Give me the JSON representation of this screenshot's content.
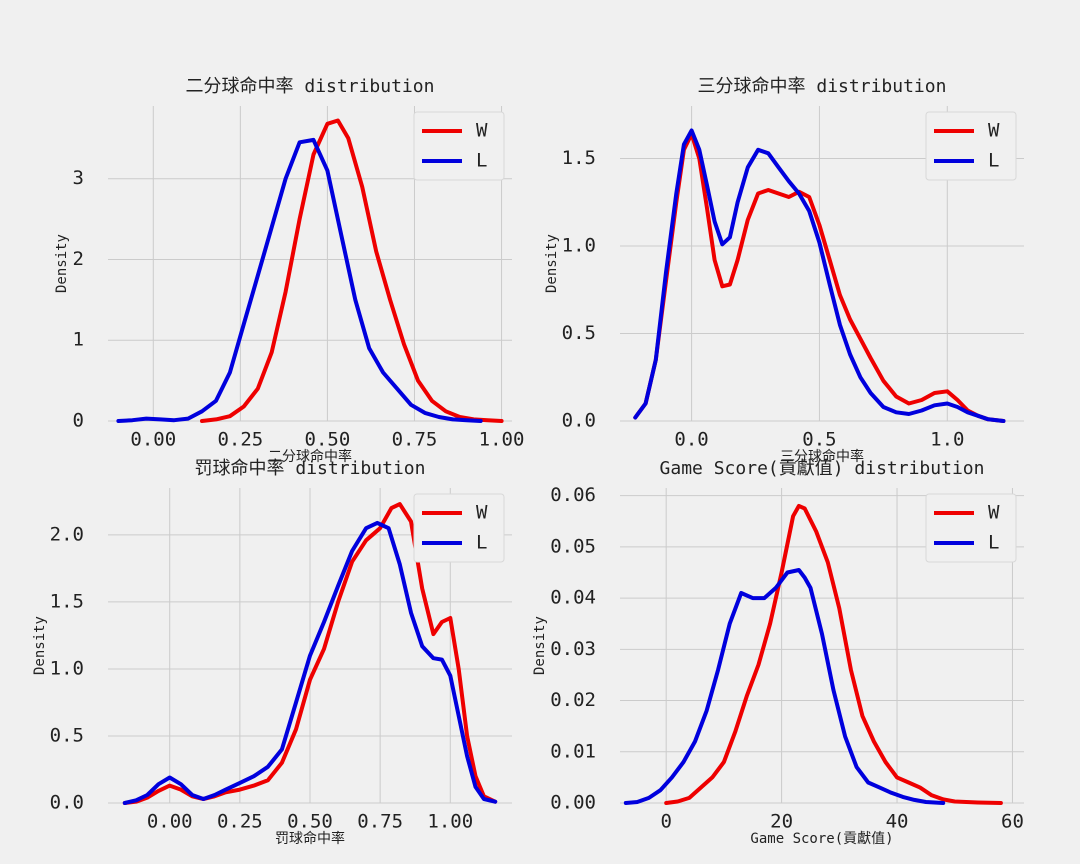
{
  "chart_data": [
    {
      "type": "line",
      "title": "二分球命中率 distribution",
      "xlabel": "二分球命中率",
      "ylabel": "Density",
      "xlim": [
        -0.13,
        1.03
      ],
      "ylim": [
        0,
        3.9
      ],
      "xticks": [
        0.0,
        0.25,
        0.5,
        0.75,
        1.0
      ],
      "xtick_labels": [
        "0.00",
        "0.25",
        "0.50",
        "0.75",
        "1.00"
      ],
      "yticks": [
        0,
        1,
        2,
        3
      ],
      "ytick_labels": [
        "0",
        "1",
        "2",
        "3"
      ],
      "grid": true,
      "legend": "top-right",
      "series": [
        {
          "name": "W",
          "color": "#ee0000",
          "x": [
            0.14,
            0.18,
            0.22,
            0.26,
            0.3,
            0.34,
            0.38,
            0.42,
            0.46,
            0.5,
            0.53,
            0.56,
            0.6,
            0.64,
            0.68,
            0.72,
            0.76,
            0.8,
            0.84,
            0.88,
            0.92,
            0.96,
            1.0
          ],
          "y": [
            0,
            0.02,
            0.06,
            0.18,
            0.4,
            0.85,
            1.6,
            2.5,
            3.3,
            3.68,
            3.72,
            3.5,
            2.9,
            2.1,
            1.5,
            0.95,
            0.5,
            0.25,
            0.12,
            0.05,
            0.02,
            0.01,
            0
          ]
        },
        {
          "name": "L",
          "color": "#0000dd",
          "x": [
            -0.1,
            -0.06,
            -0.02,
            0.02,
            0.06,
            0.1,
            0.14,
            0.18,
            0.22,
            0.26,
            0.3,
            0.34,
            0.38,
            0.42,
            0.46,
            0.5,
            0.54,
            0.58,
            0.62,
            0.66,
            0.7,
            0.74,
            0.78,
            0.82,
            0.86,
            0.9,
            0.94
          ],
          "y": [
            0,
            0.01,
            0.03,
            0.02,
            0.01,
            0.03,
            0.12,
            0.25,
            0.6,
            1.2,
            1.8,
            2.4,
            3.0,
            3.45,
            3.48,
            3.1,
            2.3,
            1.5,
            0.9,
            0.6,
            0.4,
            0.2,
            0.1,
            0.05,
            0.02,
            0.01,
            0
          ]
        }
      ]
    },
    {
      "type": "line",
      "title": "三分球命中率 distribution",
      "xlabel": "三分球命中率",
      "ylabel": "Density",
      "xlim": [
        -0.28,
        1.3
      ],
      "ylim": [
        0,
        1.8
      ],
      "xticks": [
        0.0,
        0.5,
        1.0
      ],
      "xtick_labels": [
        "0.0",
        "0.5",
        "1.0"
      ],
      "yticks": [
        0.0,
        0.5,
        1.0,
        1.5
      ],
      "ytick_labels": [
        "0.0",
        "0.5",
        "1.0",
        "1.5"
      ],
      "grid": true,
      "legend": "top-right",
      "series": [
        {
          "name": "W",
          "color": "#ee0000",
          "x": [
            -0.22,
            -0.18,
            -0.14,
            -0.1,
            -0.06,
            -0.03,
            0.0,
            0.03,
            0.06,
            0.09,
            0.12,
            0.15,
            0.18,
            0.22,
            0.26,
            0.3,
            0.34,
            0.38,
            0.42,
            0.46,
            0.5,
            0.54,
            0.58,
            0.62,
            0.66,
            0.7,
            0.75,
            0.8,
            0.85,
            0.9,
            0.95,
            1.0,
            1.04,
            1.08,
            1.12,
            1.16,
            1.22
          ],
          "y": [
            0.02,
            0.1,
            0.35,
            0.8,
            1.25,
            1.55,
            1.64,
            1.5,
            1.22,
            0.92,
            0.77,
            0.78,
            0.92,
            1.15,
            1.3,
            1.32,
            1.3,
            1.28,
            1.31,
            1.28,
            1.12,
            0.92,
            0.72,
            0.58,
            0.47,
            0.36,
            0.23,
            0.14,
            0.1,
            0.12,
            0.16,
            0.17,
            0.12,
            0.06,
            0.03,
            0.01,
            0.0
          ]
        },
        {
          "name": "L",
          "color": "#0000dd",
          "x": [
            -0.22,
            -0.18,
            -0.14,
            -0.1,
            -0.06,
            -0.03,
            0.0,
            0.03,
            0.06,
            0.09,
            0.12,
            0.15,
            0.18,
            0.22,
            0.26,
            0.3,
            0.34,
            0.38,
            0.42,
            0.46,
            0.5,
            0.54,
            0.58,
            0.62,
            0.66,
            0.7,
            0.75,
            0.8,
            0.85,
            0.9,
            0.95,
            1.0,
            1.04,
            1.08,
            1.12,
            1.16,
            1.22
          ],
          "y": [
            0.02,
            0.1,
            0.35,
            0.85,
            1.3,
            1.58,
            1.66,
            1.55,
            1.35,
            1.14,
            1.01,
            1.05,
            1.25,
            1.45,
            1.55,
            1.53,
            1.45,
            1.37,
            1.3,
            1.2,
            1.02,
            0.78,
            0.55,
            0.38,
            0.25,
            0.16,
            0.08,
            0.05,
            0.04,
            0.06,
            0.09,
            0.1,
            0.08,
            0.05,
            0.03,
            0.01,
            0.0
          ]
        }
      ]
    },
    {
      "type": "line",
      "title": "罚球命中率 distribution",
      "xlabel": "罚球命中率",
      "ylabel": "Density",
      "xlim": [
        -0.22,
        1.22
      ],
      "ylim": [
        0,
        2.35
      ],
      "xticks": [
        0.0,
        0.25,
        0.5,
        0.75,
        1.0
      ],
      "xtick_labels": [
        "0.00",
        "0.25",
        "0.50",
        "0.75",
        "1.00"
      ],
      "yticks": [
        0.0,
        0.5,
        1.0,
        1.5,
        2.0
      ],
      "ytick_labels": [
        "0.0",
        "0.5",
        "1.0",
        "1.5",
        "2.0"
      ],
      "grid": true,
      "legend": "top-right",
      "series": [
        {
          "name": "W",
          "color": "#ee0000",
          "x": [
            -0.16,
            -0.12,
            -0.08,
            -0.04,
            0.0,
            0.04,
            0.08,
            0.12,
            0.16,
            0.2,
            0.25,
            0.3,
            0.35,
            0.4,
            0.45,
            0.5,
            0.55,
            0.6,
            0.65,
            0.7,
            0.75,
            0.79,
            0.82,
            0.86,
            0.9,
            0.94,
            0.97,
            1.0,
            1.03,
            1.06,
            1.09,
            1.12,
            1.16
          ],
          "y": [
            0,
            0.01,
            0.04,
            0.09,
            0.13,
            0.1,
            0.05,
            0.03,
            0.05,
            0.08,
            0.1,
            0.13,
            0.17,
            0.3,
            0.55,
            0.92,
            1.15,
            1.5,
            1.8,
            1.96,
            2.05,
            2.2,
            2.23,
            2.1,
            1.6,
            1.26,
            1.35,
            1.38,
            1.0,
            0.5,
            0.2,
            0.05,
            0.01
          ]
        },
        {
          "name": "L",
          "color": "#0000dd",
          "x": [
            -0.16,
            -0.12,
            -0.08,
            -0.04,
            0.0,
            0.04,
            0.08,
            0.12,
            0.16,
            0.2,
            0.25,
            0.3,
            0.35,
            0.4,
            0.45,
            0.5,
            0.55,
            0.6,
            0.65,
            0.7,
            0.74,
            0.78,
            0.82,
            0.86,
            0.9,
            0.94,
            0.97,
            1.0,
            1.03,
            1.06,
            1.09,
            1.12,
            1.16
          ],
          "y": [
            0,
            0.02,
            0.06,
            0.14,
            0.19,
            0.14,
            0.06,
            0.03,
            0.06,
            0.1,
            0.15,
            0.2,
            0.27,
            0.4,
            0.75,
            1.1,
            1.35,
            1.62,
            1.88,
            2.05,
            2.09,
            2.05,
            1.78,
            1.42,
            1.17,
            1.08,
            1.07,
            0.95,
            0.65,
            0.35,
            0.12,
            0.03,
            0.01
          ]
        }
      ]
    },
    {
      "type": "line",
      "title": "Game Score(貢獻值) distribution",
      "xlabel": "Game Score(貢獻值)",
      "ylabel": "Density",
      "xlim": [
        -8,
        62
      ],
      "ylim": [
        0,
        0.0615
      ],
      "xticks": [
        0,
        20,
        40,
        60
      ],
      "xtick_labels": [
        "0",
        "20",
        "40",
        "60"
      ],
      "yticks": [
        0.0,
        0.01,
        0.02,
        0.03,
        0.04,
        0.05,
        0.06
      ],
      "ytick_labels": [
        "0.00",
        "0.01",
        "0.02",
        "0.03",
        "0.04",
        "0.05",
        "0.06"
      ],
      "grid": true,
      "legend": "top-right",
      "series": [
        {
          "name": "W",
          "color": "#ee0000",
          "x": [
            0,
            2,
            4,
            6,
            8,
            10,
            12,
            14,
            16,
            18,
            20,
            22,
            23,
            24,
            26,
            28,
            30,
            32,
            34,
            36,
            38,
            40,
            42,
            44,
            46,
            48,
            50,
            54,
            58
          ],
          "y": [
            0,
            0.0003,
            0.001,
            0.003,
            0.005,
            0.008,
            0.014,
            0.021,
            0.027,
            0.035,
            0.045,
            0.056,
            0.058,
            0.0575,
            0.053,
            0.047,
            0.038,
            0.026,
            0.017,
            0.012,
            0.008,
            0.005,
            0.004,
            0.003,
            0.0015,
            0.0007,
            0.0003,
            0.0001,
            0
          ]
        },
        {
          "name": "L",
          "color": "#0000dd",
          "x": [
            -7,
            -5,
            -3,
            -1,
            1,
            3,
            5,
            7,
            9,
            11,
            13,
            15,
            17,
            19,
            21,
            23,
            24,
            25,
            27,
            29,
            31,
            33,
            35,
            37,
            39,
            41,
            43,
            45,
            48
          ],
          "y": [
            0,
            0.0002,
            0.001,
            0.0025,
            0.005,
            0.008,
            0.012,
            0.018,
            0.026,
            0.035,
            0.041,
            0.04,
            0.04,
            0.042,
            0.045,
            0.0455,
            0.044,
            0.042,
            0.033,
            0.022,
            0.013,
            0.007,
            0.004,
            0.003,
            0.002,
            0.0012,
            0.0006,
            0.0002,
            0
          ]
        }
      ]
    }
  ]
}
